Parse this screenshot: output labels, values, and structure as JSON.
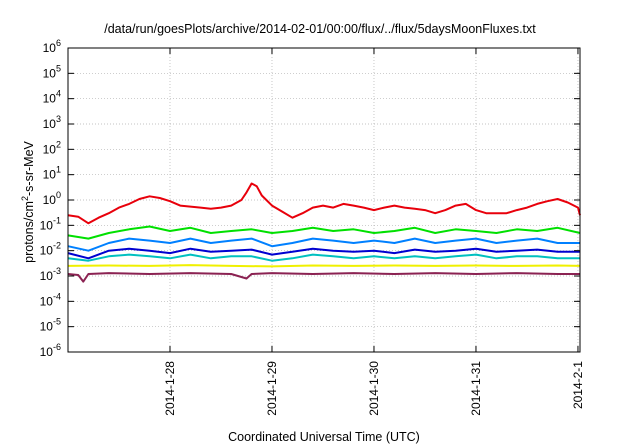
{
  "chart_data": {
    "type": "line",
    "title": "/data/run/goesPlots/archive/2014-02-01/00:00/flux/../flux/5daysMoonFluxes.txt",
    "xlabel": "Coordinated Universal Time (UTC)",
    "ylabel_parts": [
      "protons/cm",
      "2",
      "-s-sr-MeV"
    ],
    "y_scale": "log",
    "ylim": [
      1e-06,
      1000000.0
    ],
    "y_ticks": [
      -6,
      -5,
      -4,
      -3,
      -2,
      -1,
      0,
      1,
      2,
      3,
      4,
      5,
      6
    ],
    "xlim": [
      "2014-01-27 00:00",
      "2014-02-01 00:30"
    ],
    "x_ticks": [
      {
        "label": "2014-1-28",
        "day": 1
      },
      {
        "label": "2014-1-29",
        "day": 2
      },
      {
        "label": "2014-1-30",
        "day": 3
      },
      {
        "label": "2014-1-31",
        "day": 4
      },
      {
        "label": "2014-2-1",
        "day": 5
      }
    ],
    "grid": true,
    "legend": "none",
    "series": [
      {
        "color": "#e8000b",
        "points": [
          [
            0.0,
            0.25
          ],
          [
            0.1,
            0.22
          ],
          [
            0.2,
            0.12
          ],
          [
            0.3,
            0.2
          ],
          [
            0.4,
            0.3
          ],
          [
            0.5,
            0.5
          ],
          [
            0.6,
            0.7
          ],
          [
            0.7,
            1.1
          ],
          [
            0.8,
            1.4
          ],
          [
            0.9,
            1.2
          ],
          [
            1.0,
            0.9
          ],
          [
            1.1,
            0.6
          ],
          [
            1.2,
            0.55
          ],
          [
            1.3,
            0.5
          ],
          [
            1.4,
            0.45
          ],
          [
            1.5,
            0.5
          ],
          [
            1.6,
            0.6
          ],
          [
            1.7,
            1.0
          ],
          [
            1.75,
            2.0
          ],
          [
            1.8,
            4.5
          ],
          [
            1.85,
            3.5
          ],
          [
            1.9,
            1.5
          ],
          [
            2.0,
            0.6
          ],
          [
            2.1,
            0.35
          ],
          [
            2.2,
            0.2
          ],
          [
            2.3,
            0.3
          ],
          [
            2.4,
            0.5
          ],
          [
            2.5,
            0.6
          ],
          [
            2.6,
            0.5
          ],
          [
            2.7,
            0.7
          ],
          [
            2.8,
            0.6
          ],
          [
            2.9,
            0.5
          ],
          [
            3.0,
            0.4
          ],
          [
            3.1,
            0.5
          ],
          [
            3.2,
            0.6
          ],
          [
            3.3,
            0.5
          ],
          [
            3.4,
            0.45
          ],
          [
            3.5,
            0.4
          ],
          [
            3.6,
            0.3
          ],
          [
            3.7,
            0.4
          ],
          [
            3.8,
            0.6
          ],
          [
            3.9,
            0.7
          ],
          [
            4.0,
            0.4
          ],
          [
            4.1,
            0.3
          ],
          [
            4.2,
            0.3
          ],
          [
            4.3,
            0.3
          ],
          [
            4.4,
            0.4
          ],
          [
            4.5,
            0.5
          ],
          [
            4.6,
            0.7
          ],
          [
            4.7,
            0.9
          ],
          [
            4.8,
            1.1
          ],
          [
            4.9,
            0.8
          ],
          [
            5.0,
            0.5
          ],
          [
            5.02,
            0.25
          ]
        ]
      },
      {
        "color": "#00e000",
        "points": [
          [
            0.0,
            0.04
          ],
          [
            0.2,
            0.03
          ],
          [
            0.4,
            0.05
          ],
          [
            0.6,
            0.07
          ],
          [
            0.8,
            0.09
          ],
          [
            1.0,
            0.06
          ],
          [
            1.2,
            0.08
          ],
          [
            1.4,
            0.05
          ],
          [
            1.6,
            0.06
          ],
          [
            1.8,
            0.07
          ],
          [
            2.0,
            0.05
          ],
          [
            2.2,
            0.06
          ],
          [
            2.4,
            0.08
          ],
          [
            2.6,
            0.06
          ],
          [
            2.8,
            0.07
          ],
          [
            3.0,
            0.05
          ],
          [
            3.2,
            0.06
          ],
          [
            3.4,
            0.08
          ],
          [
            3.6,
            0.05
          ],
          [
            3.8,
            0.07
          ],
          [
            4.0,
            0.06
          ],
          [
            4.2,
            0.05
          ],
          [
            4.4,
            0.07
          ],
          [
            4.6,
            0.06
          ],
          [
            4.8,
            0.08
          ],
          [
            5.02,
            0.05
          ]
        ]
      },
      {
        "color": "#0080ff",
        "points": [
          [
            0.0,
            0.015
          ],
          [
            0.2,
            0.01
          ],
          [
            0.4,
            0.02
          ],
          [
            0.6,
            0.03
          ],
          [
            0.8,
            0.025
          ],
          [
            1.0,
            0.02
          ],
          [
            1.2,
            0.03
          ],
          [
            1.4,
            0.02
          ],
          [
            1.6,
            0.025
          ],
          [
            1.8,
            0.03
          ],
          [
            2.0,
            0.015
          ],
          [
            2.2,
            0.02
          ],
          [
            2.4,
            0.03
          ],
          [
            2.6,
            0.025
          ],
          [
            2.8,
            0.02
          ],
          [
            3.0,
            0.025
          ],
          [
            3.2,
            0.02
          ],
          [
            3.4,
            0.03
          ],
          [
            3.6,
            0.02
          ],
          [
            3.8,
            0.025
          ],
          [
            4.0,
            0.03
          ],
          [
            4.2,
            0.02
          ],
          [
            4.4,
            0.025
          ],
          [
            4.6,
            0.03
          ],
          [
            4.8,
            0.02
          ],
          [
            5.02,
            0.02
          ]
        ]
      },
      {
        "color": "#0000d0",
        "points": [
          [
            0.0,
            0.008
          ],
          [
            0.2,
            0.005
          ],
          [
            0.4,
            0.01
          ],
          [
            0.6,
            0.012
          ],
          [
            0.8,
            0.01
          ],
          [
            1.0,
            0.008
          ],
          [
            1.2,
            0.012
          ],
          [
            1.4,
            0.009
          ],
          [
            1.6,
            0.01
          ],
          [
            1.8,
            0.011
          ],
          [
            2.0,
            0.007
          ],
          [
            2.2,
            0.009
          ],
          [
            2.4,
            0.012
          ],
          [
            2.6,
            0.01
          ],
          [
            2.8,
            0.009
          ],
          [
            3.0,
            0.01
          ],
          [
            3.2,
            0.008
          ],
          [
            3.4,
            0.011
          ],
          [
            3.6,
            0.009
          ],
          [
            3.8,
            0.01
          ],
          [
            4.0,
            0.012
          ],
          [
            4.2,
            0.009
          ],
          [
            4.4,
            0.01
          ],
          [
            4.6,
            0.011
          ],
          [
            4.8,
            0.009
          ],
          [
            5.02,
            0.009
          ]
        ]
      },
      {
        "color": "#00c0c0",
        "points": [
          [
            0.0,
            0.005
          ],
          [
            0.2,
            0.004
          ],
          [
            0.4,
            0.006
          ],
          [
            0.6,
            0.007
          ],
          [
            0.8,
            0.006
          ],
          [
            1.0,
            0.005
          ],
          [
            1.2,
            0.007
          ],
          [
            1.4,
            0.005
          ],
          [
            1.6,
            0.006
          ],
          [
            1.8,
            0.006
          ],
          [
            2.0,
            0.004
          ],
          [
            2.2,
            0.005
          ],
          [
            2.4,
            0.007
          ],
          [
            2.6,
            0.006
          ],
          [
            2.8,
            0.005
          ],
          [
            3.0,
            0.006
          ],
          [
            3.2,
            0.005
          ],
          [
            3.4,
            0.006
          ],
          [
            3.6,
            0.005
          ],
          [
            3.8,
            0.006
          ],
          [
            4.0,
            0.007
          ],
          [
            4.2,
            0.005
          ],
          [
            4.4,
            0.006
          ],
          [
            4.6,
            0.006
          ],
          [
            4.8,
            0.005
          ],
          [
            5.02,
            0.005
          ]
        ]
      },
      {
        "color": "#f0f000",
        "points": [
          [
            0.0,
            0.0025
          ],
          [
            0.4,
            0.0026
          ],
          [
            0.8,
            0.0025
          ],
          [
            1.2,
            0.0027
          ],
          [
            1.6,
            0.0025
          ],
          [
            2.0,
            0.0024
          ],
          [
            2.4,
            0.0026
          ],
          [
            2.8,
            0.0025
          ],
          [
            3.2,
            0.0026
          ],
          [
            3.6,
            0.0025
          ],
          [
            4.0,
            0.0026
          ],
          [
            4.4,
            0.0025
          ],
          [
            4.8,
            0.0026
          ],
          [
            5.02,
            0.0025
          ]
        ]
      },
      {
        "color": "#8b2252",
        "points": [
          [
            0.0,
            0.0012
          ],
          [
            0.1,
            0.0011
          ],
          [
            0.15,
            0.0006
          ],
          [
            0.2,
            0.0012
          ],
          [
            0.4,
            0.0013
          ],
          [
            0.8,
            0.0012
          ],
          [
            1.2,
            0.0013
          ],
          [
            1.6,
            0.0012
          ],
          [
            1.75,
            0.0008
          ],
          [
            1.8,
            0.0012
          ],
          [
            2.0,
            0.0013
          ],
          [
            2.4,
            0.0012
          ],
          [
            2.8,
            0.0013
          ],
          [
            3.2,
            0.0012
          ],
          [
            3.6,
            0.0013
          ],
          [
            4.0,
            0.0012
          ],
          [
            4.4,
            0.0013
          ],
          [
            4.8,
            0.0012
          ],
          [
            5.02,
            0.0012
          ]
        ]
      }
    ]
  }
}
